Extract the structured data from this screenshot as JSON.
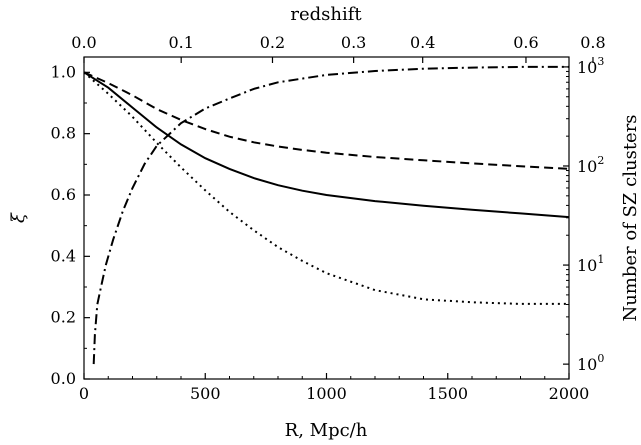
{
  "chart_data": {
    "type": "line",
    "xlabel": "R, Mpc/h",
    "ylabel": "ξ",
    "top_axis_label": "redshift",
    "right_axis_label": "Number of SZ clusters",
    "xlim": [
      0,
      2000
    ],
    "ylim": [
      0.0,
      1.05
    ],
    "right_ylim_log10": [
      -0.15,
      3.1
    ],
    "right_scale": "log",
    "grid": false,
    "legend": "none",
    "x_ticks": [
      "0",
      "500",
      "1000",
      "1500",
      "2000"
    ],
    "y_ticks": [
      "0.0",
      "0.2",
      "0.4",
      "0.6",
      "0.8",
      "1.0"
    ],
    "top_ticks": [
      {
        "label": "0.0",
        "z": 0.0
      },
      {
        "label": "0.1",
        "z": 0.1
      },
      {
        "label": "0.2",
        "z": 0.2
      },
      {
        "label": "0.3",
        "z": 0.3
      },
      {
        "label": "0.4",
        "z": 0.4
      },
      {
        "label": "0.6",
        "z": 0.6
      },
      {
        "label": "0.8",
        "z": 0.8
      }
    ],
    "right_ticks": [
      {
        "base": "10",
        "exp": "0",
        "value": 1
      },
      {
        "base": "10",
        "exp": "1",
        "value": 10
      },
      {
        "base": "10",
        "exp": "2",
        "value": 100
      },
      {
        "base": "10",
        "exp": "3",
        "value": 1000
      }
    ],
    "series": [
      {
        "style": "solid",
        "axis": "left",
        "x": [
          0,
          100,
          200,
          300,
          400,
          500,
          600,
          700,
          800,
          900,
          1000,
          1200,
          1400,
          1600,
          1800,
          2000
        ],
        "y": [
          1.0,
          0.95,
          0.885,
          0.82,
          0.765,
          0.72,
          0.685,
          0.655,
          0.632,
          0.614,
          0.6,
          0.58,
          0.565,
          0.552,
          0.54,
          0.528
        ]
      },
      {
        "style": "dashed",
        "axis": "left",
        "x": [
          0,
          100,
          200,
          300,
          400,
          500,
          600,
          700,
          800,
          900,
          1000,
          1200,
          1400,
          1600,
          1800,
          2000
        ],
        "y": [
          1.0,
          0.965,
          0.925,
          0.88,
          0.845,
          0.815,
          0.79,
          0.772,
          0.758,
          0.747,
          0.738,
          0.724,
          0.713,
          0.703,
          0.694,
          0.685
        ]
      },
      {
        "style": "dotted",
        "axis": "left",
        "x": [
          0,
          100,
          200,
          300,
          400,
          500,
          600,
          700,
          800,
          900,
          1000,
          1200,
          1400,
          1600,
          1800,
          2000
        ],
        "y": [
          1.0,
          0.93,
          0.855,
          0.77,
          0.69,
          0.615,
          0.545,
          0.485,
          0.43,
          0.385,
          0.345,
          0.29,
          0.26,
          0.25,
          0.245,
          0.245
        ]
      },
      {
        "style": "dashdot",
        "axis": "right",
        "x": [
          40,
          45,
          55,
          70,
          90,
          120,
          160,
          200,
          250,
          300,
          400,
          500,
          600,
          700,
          800,
          1000,
          1200,
          1400,
          1600,
          1800,
          2000
        ],
        "y": [
          1,
          2,
          4,
          6,
          10,
          18,
          35,
          60,
          105,
          160,
          270,
          380,
          480,
          600,
          700,
          830,
          910,
          960,
          985,
          1000,
          1000
        ]
      }
    ]
  }
}
